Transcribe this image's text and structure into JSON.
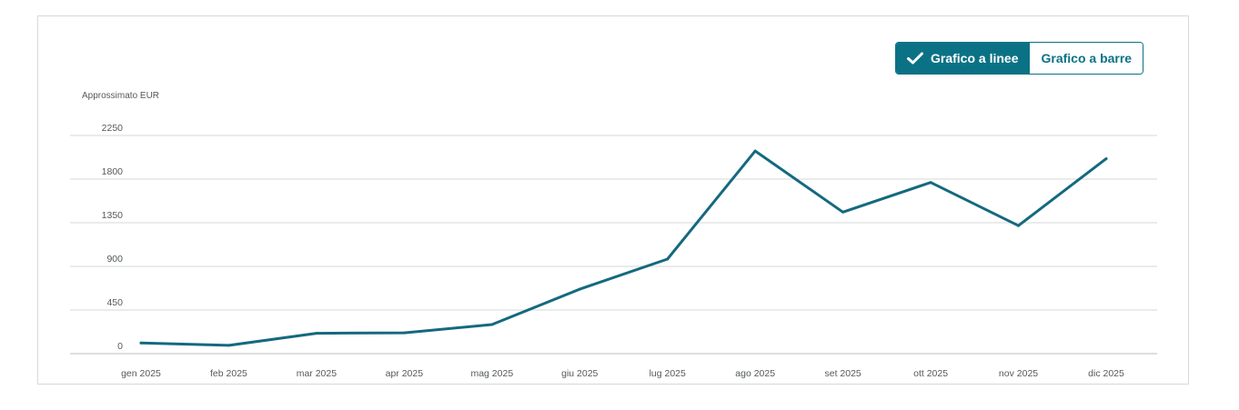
{
  "toggle": {
    "line_label": "Grafico a linee",
    "bar_label": "Grafico a barre",
    "selected": "line"
  },
  "colors": {
    "line": "#14697f",
    "accent": "#0b7285",
    "grid": "#d5d9d9",
    "axis_text": "#565959"
  },
  "chart_data": {
    "type": "line",
    "title": "",
    "xlabel": "",
    "ylabel": "Approssimato EUR",
    "categories": [
      "gen 2025",
      "feb 2025",
      "mar 2025",
      "apr 2025",
      "mag 2025",
      "giu 2025",
      "lug 2025",
      "ago 2025",
      "set 2025",
      "ott 2025",
      "nov 2025",
      "dic 2025"
    ],
    "yticks": [
      "0",
      "450",
      "900",
      "1350",
      "1800",
      "2250"
    ],
    "ylim": [
      0,
      2250
    ],
    "grid": true,
    "legend": "none",
    "series": [
      {
        "values": [
          110,
          85,
          210,
          215,
          300,
          665,
          975,
          2090,
          1460,
          1765,
          1320,
          2010
        ]
      }
    ]
  }
}
